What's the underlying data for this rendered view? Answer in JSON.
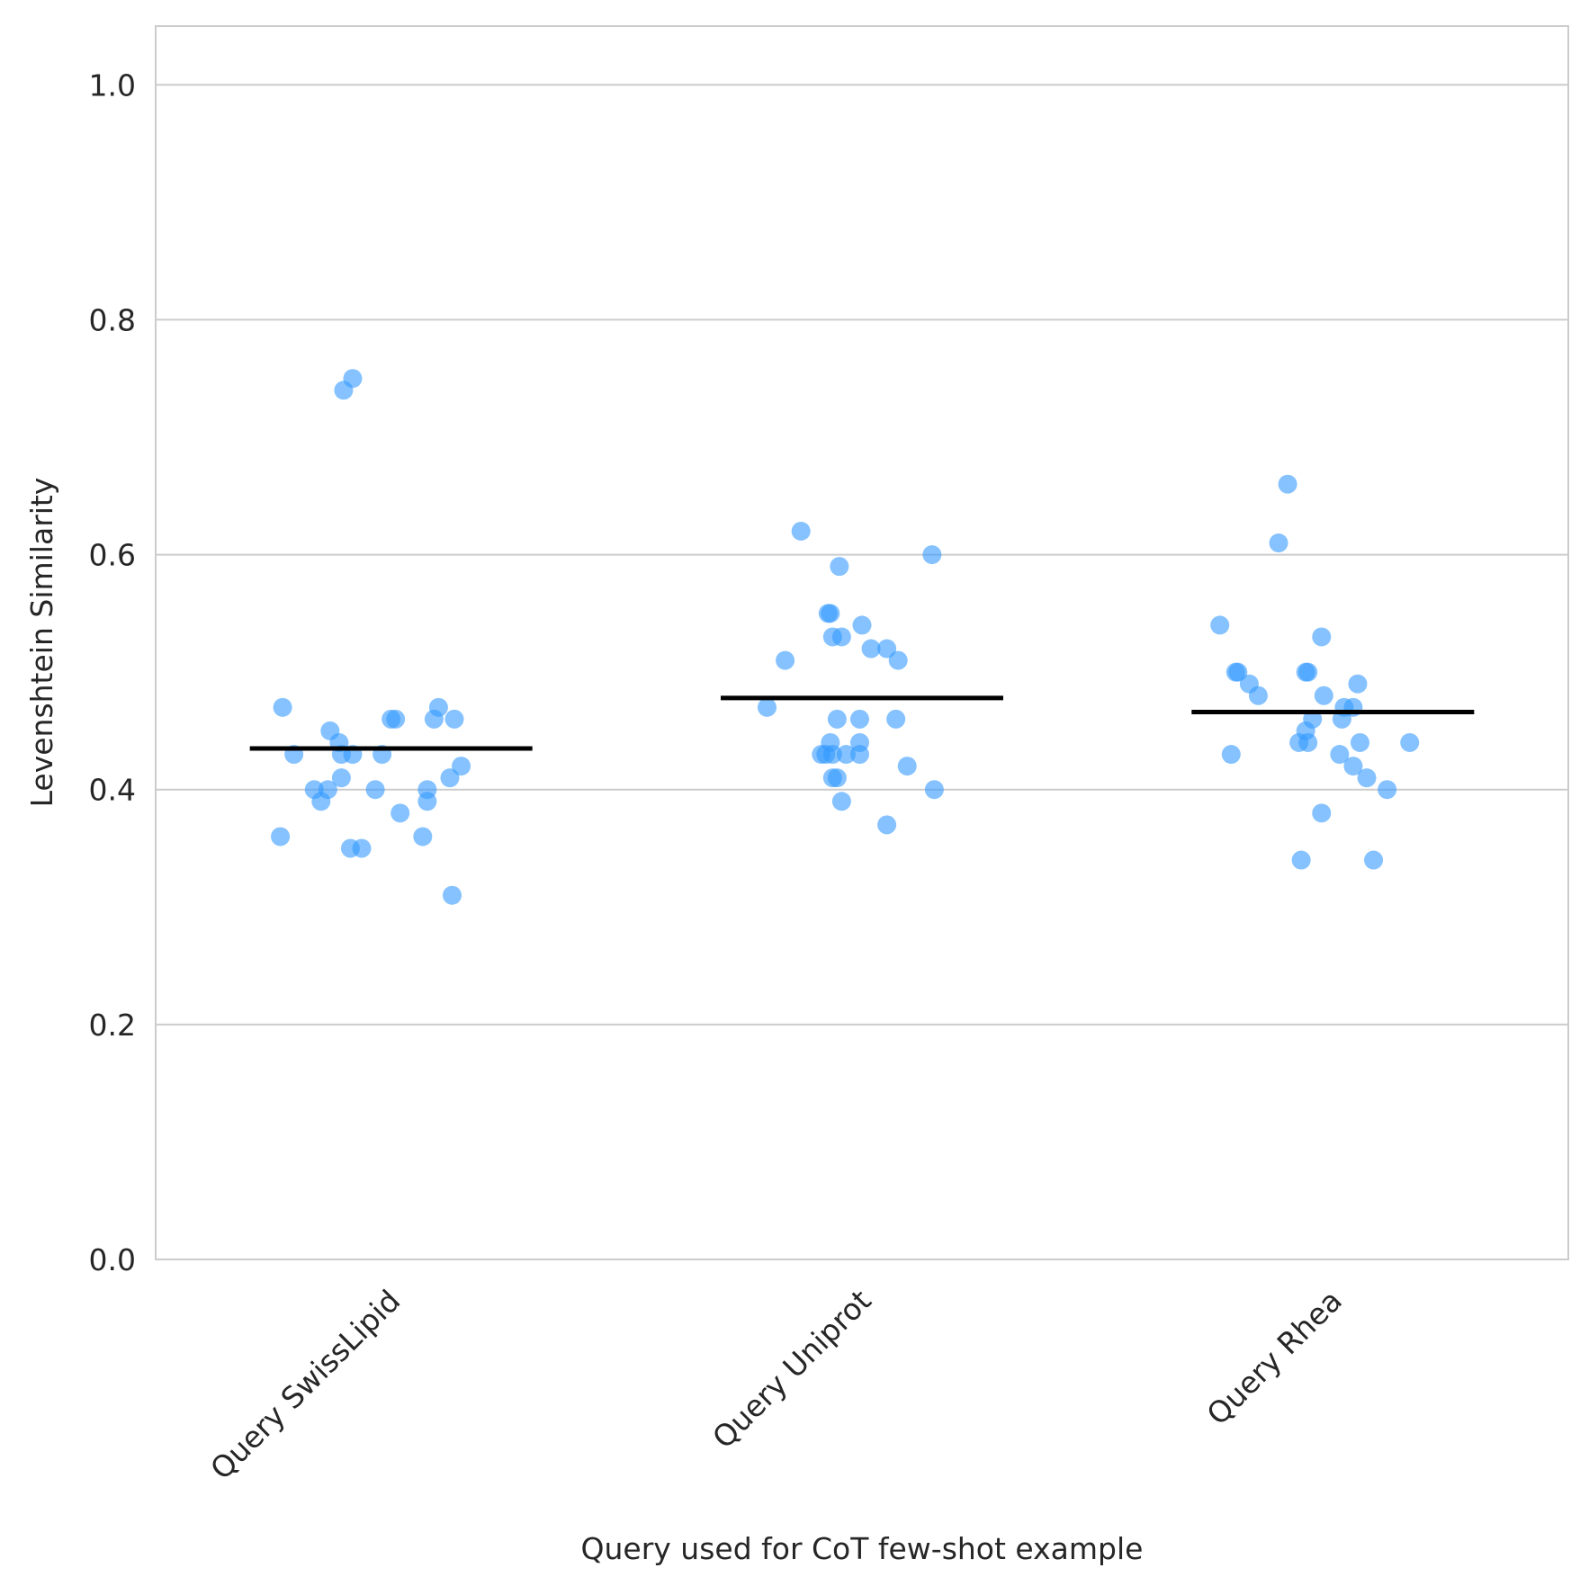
{
  "chart_data": {
    "type": "scatter",
    "subtype": "strip",
    "title": "",
    "xlabel": "Query used for CoT few-shot example",
    "ylabel": "Levenshtein Similarity",
    "ylim": [
      0.0,
      1.05
    ],
    "yticks": [
      0.0,
      0.2,
      0.4,
      0.6,
      0.8,
      1.0
    ],
    "ytick_labels": [
      "0.0",
      "0.2",
      "0.4",
      "0.6",
      "0.8",
      "1.0"
    ],
    "grid": "horizontal",
    "point_color": "#3399ff",
    "mean_line_color": "#000000",
    "categories": [
      "Query SwissLipid",
      "Query Uniprot",
      "Query Rhea"
    ],
    "series": [
      {
        "category": "Query SwissLipid",
        "mean": 0.435,
        "values": [
          0.75,
          0.74,
          0.47,
          0.47,
          0.46,
          0.46,
          0.46,
          0.46,
          0.45,
          0.44,
          0.43,
          0.43,
          0.43,
          0.43,
          0.42,
          0.41,
          0.41,
          0.4,
          0.4,
          0.4,
          0.4,
          0.39,
          0.39,
          0.38,
          0.36,
          0.36,
          0.35,
          0.35,
          0.31
        ],
        "jitter": [
          0.33,
          0.29,
          0.02,
          0.71,
          0.5,
          0.52,
          0.69,
          0.78,
          0.23,
          0.27,
          0.07,
          0.28,
          0.33,
          0.46,
          0.81,
          0.28,
          0.76,
          0.22,
          0.16,
          0.43,
          0.66,
          0.19,
          0.66,
          0.54,
          0.01,
          0.64,
          0.37,
          0.32,
          0.77
        ]
      },
      {
        "category": "Query Uniprot",
        "mean": 0.478,
        "values": [
          0.62,
          0.6,
          0.59,
          0.55,
          0.55,
          0.54,
          0.53,
          0.53,
          0.52,
          0.52,
          0.51,
          0.51,
          0.47,
          0.46,
          0.46,
          0.46,
          0.44,
          0.44,
          0.43,
          0.43,
          0.43,
          0.43,
          0.43,
          0.42,
          0.41,
          0.41,
          0.4,
          0.39,
          0.37
        ],
        "jitter": [
          0.23,
          0.81,
          0.4,
          0.36,
          0.35,
          0.5,
          0.41,
          0.37,
          0.54,
          0.61,
          0.16,
          0.66,
          0.08,
          0.39,
          0.65,
          0.49,
          0.36,
          0.49,
          0.32,
          0.34,
          0.49,
          0.37,
          0.43,
          0.7,
          0.37,
          0.39,
          0.82,
          0.41,
          0.61
        ]
      },
      {
        "category": "Query Rhea",
        "mean": 0.466,
        "values": [
          0.66,
          0.61,
          0.54,
          0.53,
          0.5,
          0.5,
          0.5,
          0.5,
          0.49,
          0.49,
          0.48,
          0.48,
          0.47,
          0.47,
          0.46,
          0.46,
          0.45,
          0.44,
          0.44,
          0.44,
          0.44,
          0.43,
          0.43,
          0.42,
          0.41,
          0.4,
          0.38,
          0.34,
          0.34
        ],
        "jitter": [
          0.3,
          0.26,
          0.0,
          0.45,
          0.07,
          0.08,
          0.38,
          0.39,
          0.61,
          0.13,
          0.17,
          0.46,
          0.55,
          0.59,
          0.54,
          0.41,
          0.38,
          0.62,
          0.35,
          0.39,
          0.84,
          0.05,
          0.53,
          0.59,
          0.65,
          0.74,
          0.45,
          0.68,
          0.36
        ]
      }
    ]
  }
}
